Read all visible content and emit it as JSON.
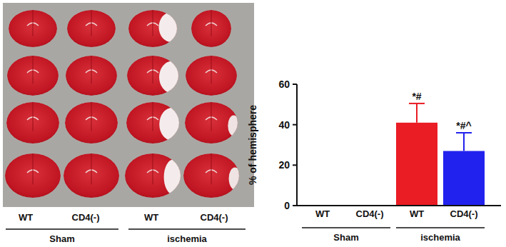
{
  "chart_data": {
    "type": "bar",
    "y_label": "% of hemisphere",
    "categories": [
      "WT",
      "CD4(-)",
      "WT",
      "CD4(-)"
    ],
    "groups": [
      "Sham",
      "ischemia"
    ],
    "values": [
      0,
      0,
      41,
      27
    ],
    "errors": [
      0,
      0,
      9.5,
      9
    ],
    "colors": [
      "#ea1c24",
      "#2222ee",
      "#ea1c24",
      "#2222ee"
    ],
    "annotations": [
      null,
      null,
      "*#",
      "*#^"
    ],
    "ylim": [
      0,
      60
    ],
    "yticks": [
      0,
      20,
      40,
      60
    ],
    "grid": false
  },
  "photo_panel": {
    "columns": [
      "WT",
      "CD4(-)",
      "WT",
      "CD4(-)"
    ],
    "groups": [
      "Sham",
      "ischemia"
    ]
  }
}
